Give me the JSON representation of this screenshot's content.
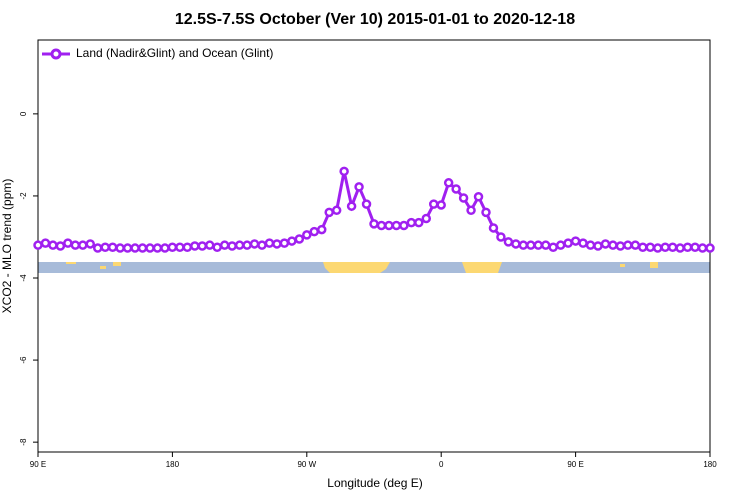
{
  "chart_data": {
    "type": "line",
    "title": "12.5S-7.5S October (Ver 10)   2015-01-01 to 2020-12-18",
    "x_label": "Longitude (deg E)",
    "y_label": "XCO2 - MLO trend (ppm)",
    "xlim": [
      90,
      540
    ],
    "ylim": [
      -8.24,
      1.8
    ],
    "xticks": [
      {
        "value": 90,
        "label": "90 E"
      },
      {
        "value": 180,
        "label": "180"
      },
      {
        "value": 270,
        "label": "90 W"
      },
      {
        "value": 360,
        "label": "0"
      },
      {
        "value": 450,
        "label": "90 E"
      },
      {
        "value": 540,
        "label": "180"
      }
    ],
    "yticks": [
      0,
      -2,
      -4,
      -6,
      -8
    ],
    "legend": "top-left",
    "x": [
      90,
      95,
      100,
      105,
      110,
      115,
      120,
      125,
      130,
      135,
      140,
      145,
      150,
      155,
      160,
      165,
      170,
      175,
      180,
      185,
      190,
      195,
      200,
      205,
      210,
      215,
      220,
      225,
      230,
      235,
      240,
      245,
      250,
      255,
      260,
      265,
      270,
      275,
      280,
      285,
      290,
      295,
      300,
      305,
      310,
      315,
      320,
      325,
      330,
      335,
      340,
      345,
      350,
      355,
      360,
      365,
      370,
      375,
      380,
      385,
      390,
      395,
      400,
      405,
      410,
      415,
      420,
      425,
      430,
      435,
      440,
      445,
      450,
      455,
      460,
      465,
      470,
      475,
      480,
      485,
      490,
      495,
      500,
      505,
      510,
      515,
      520,
      525,
      530,
      535,
      540
    ],
    "series": [
      {
        "name": "Land (Nadir&Glint) and Ocean (Glint)",
        "color": "#a020f0",
        "values": [
          -3.2,
          -3.15,
          -3.2,
          -3.22,
          -3.15,
          -3.2,
          -3.2,
          -3.17,
          -3.27,
          -3.25,
          -3.25,
          -3.27,
          -3.27,
          -3.27,
          -3.27,
          -3.27,
          -3.27,
          -3.27,
          -3.25,
          -3.25,
          -3.25,
          -3.22,
          -3.22,
          -3.2,
          -3.25,
          -3.2,
          -3.22,
          -3.2,
          -3.2,
          -3.17,
          -3.2,
          -3.15,
          -3.17,
          -3.15,
          -3.1,
          -3.05,
          -2.95,
          -2.87,
          -2.82,
          -2.4,
          -2.35,
          -1.4,
          -2.25,
          -1.78,
          -2.2,
          -2.68,
          -2.72,
          -2.72,
          -2.72,
          -2.72,
          -2.65,
          -2.65,
          -2.55,
          -2.2,
          -2.22,
          -1.68,
          -1.83,
          -2.05,
          -2.35,
          -2.02,
          -2.4,
          -2.78,
          -3.0,
          -3.12,
          -3.17,
          -3.2,
          -3.2,
          -3.2,
          -3.2,
          -3.25,
          -3.2,
          -3.15,
          -3.1,
          -3.15,
          -3.2,
          -3.22,
          -3.17,
          -3.2,
          -3.22,
          -3.2,
          -3.2,
          -3.25,
          -3.25,
          -3.27,
          -3.25,
          -3.25,
          -3.27,
          -3.25,
          -3.25,
          -3.27,
          -3.27
        ]
      }
    ]
  }
}
